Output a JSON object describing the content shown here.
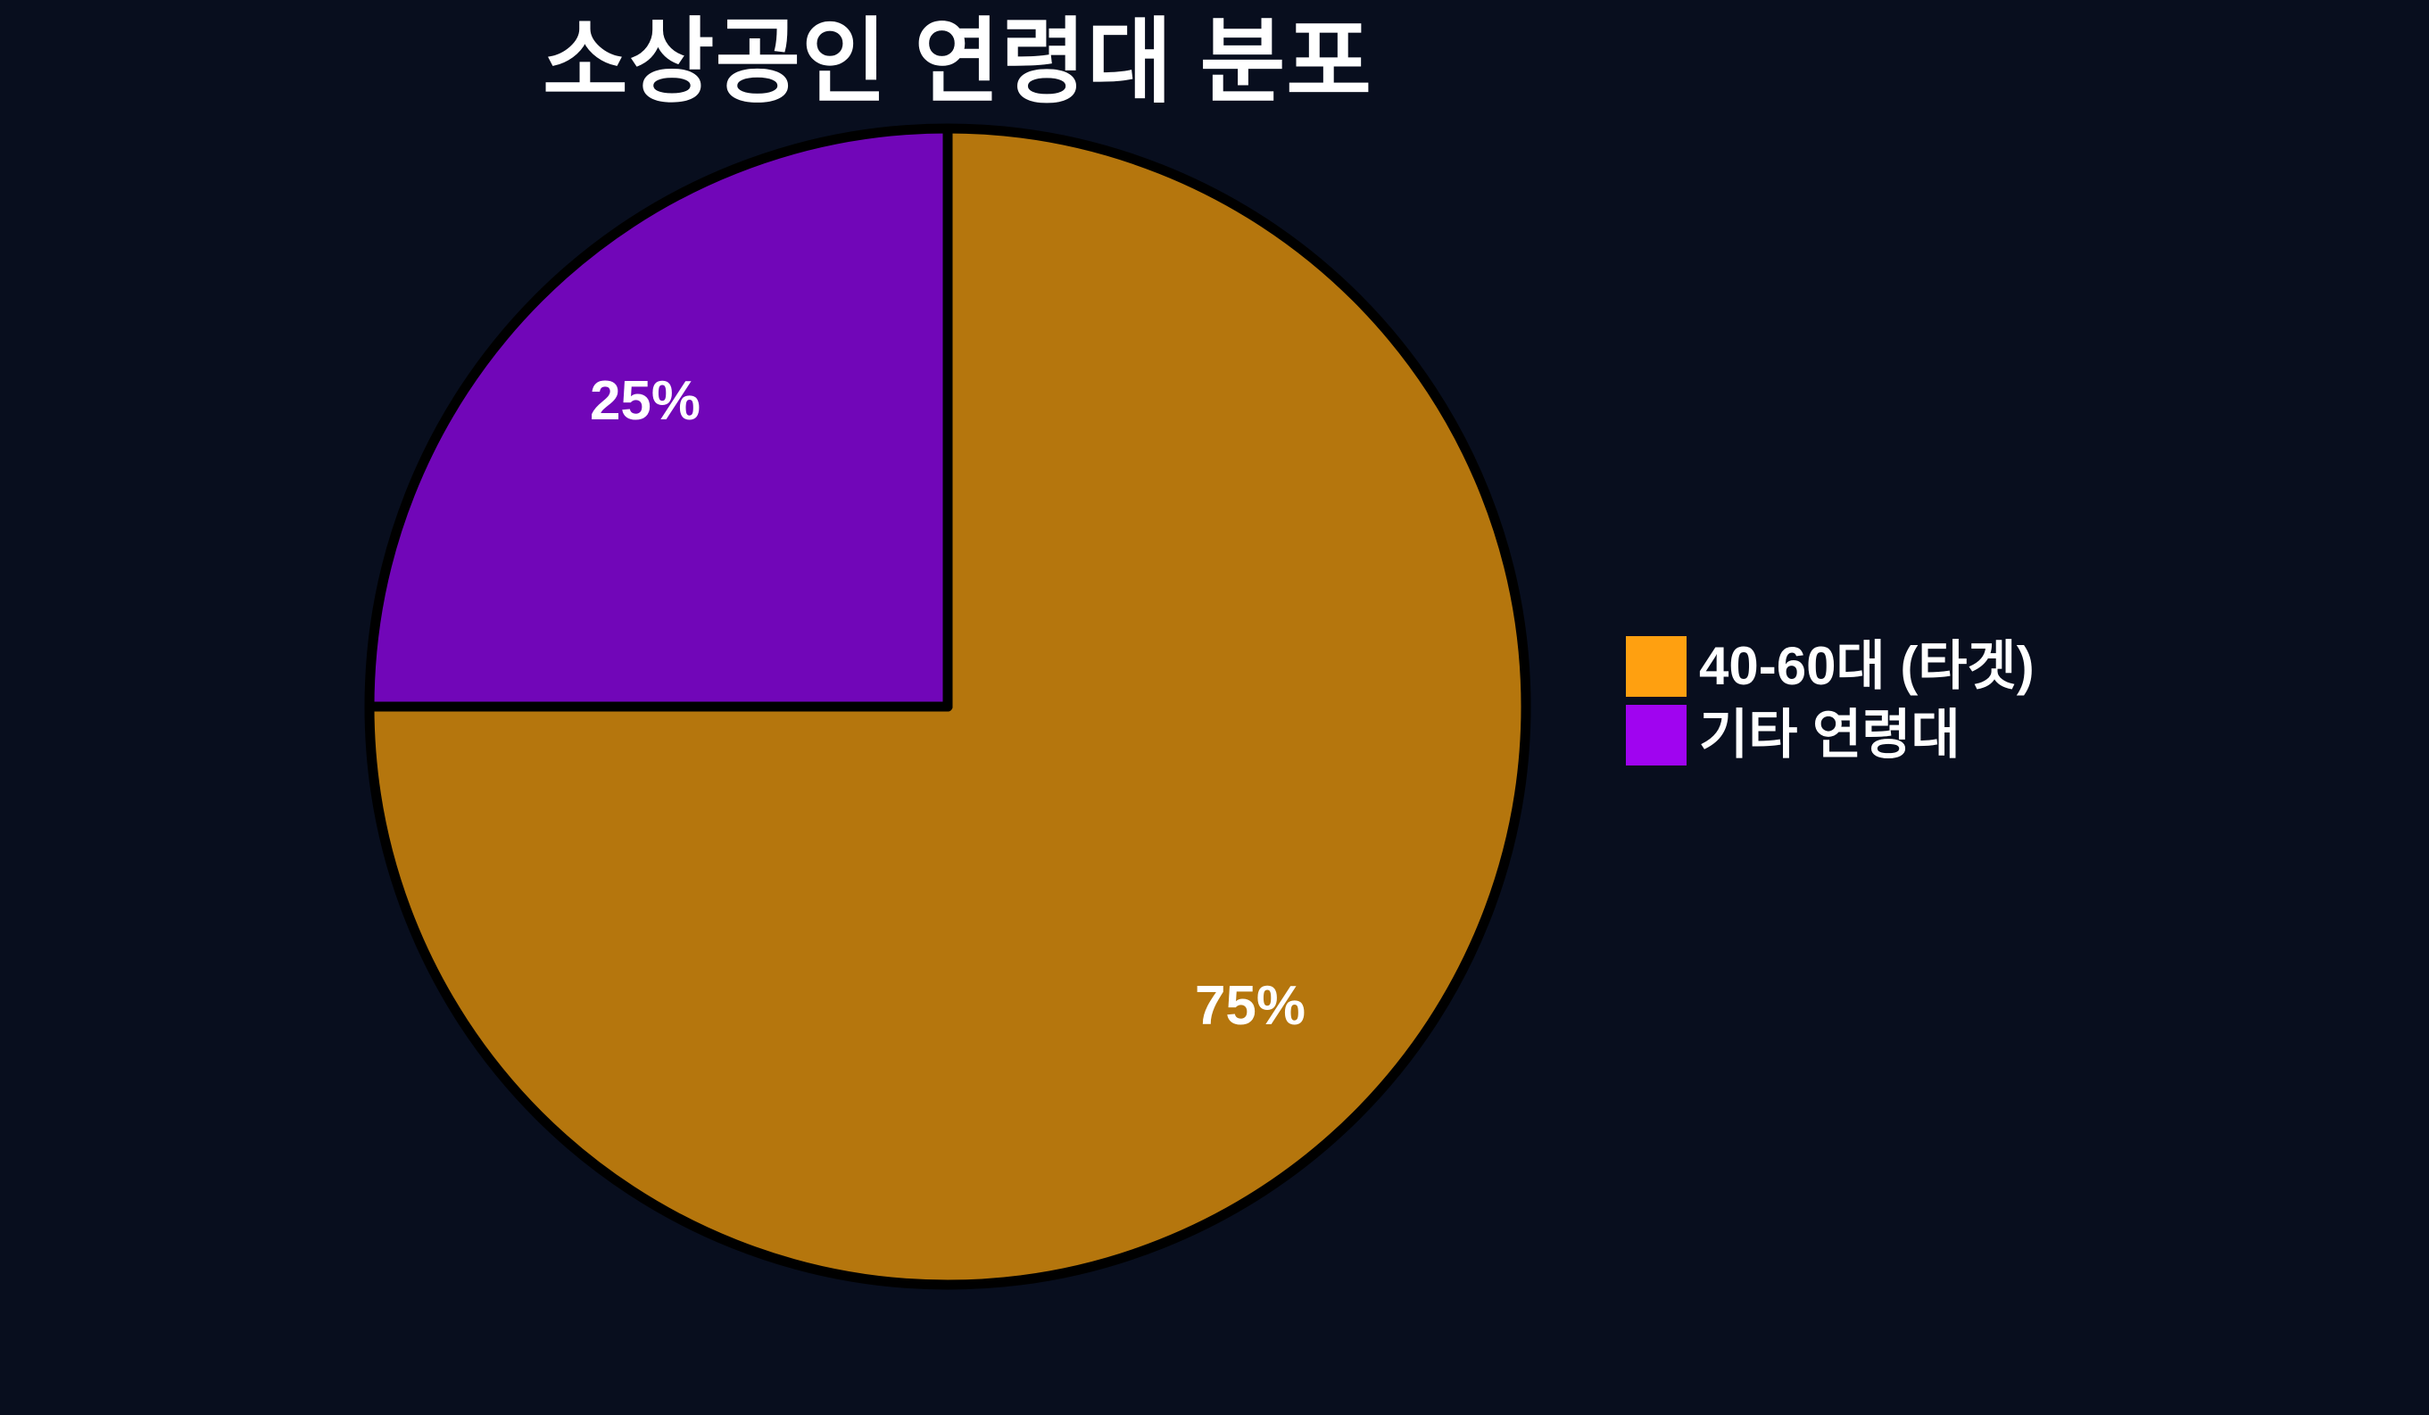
{
  "chart_data": {
    "type": "pie",
    "title": "소상공인 연령대 분포",
    "slices": [
      {
        "label": "40-60대 (타겟)",
        "value": 75,
        "pct_label": "75%",
        "wedge_color": "#B5760D",
        "legend_color": "#FFA010"
      },
      {
        "label": "기타 연령대",
        "value": 25,
        "pct_label": "25%",
        "wedge_color": "#7106B8",
        "legend_color": "#A004F0"
      }
    ],
    "start_angle_deg": 90,
    "direction": "clockwise",
    "pct_label_distance": 0.74,
    "legend_position": "center right",
    "background_color": "#080E1E",
    "wedge_edge_color": "#000000",
    "text_color": "#FFFFFF"
  }
}
